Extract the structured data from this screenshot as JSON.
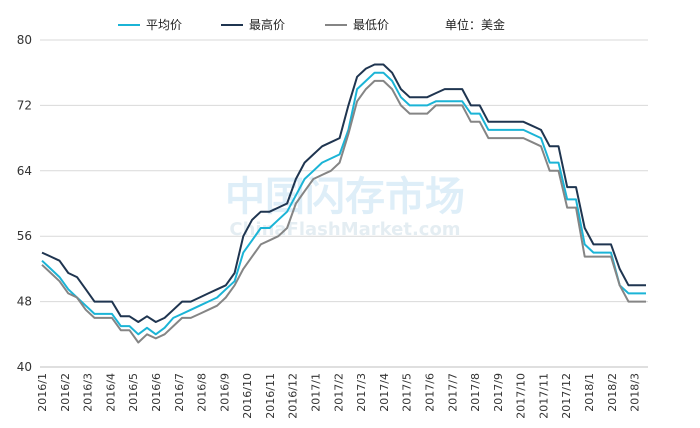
{
  "unit_label": "单位：美金",
  "watermark": {
    "cn": "中国闪存市场",
    "en": "ChinaFlashMarket.com"
  },
  "chart_data": {
    "type": "line",
    "ylim": [
      40,
      80
    ],
    "yticks": [
      40,
      48,
      56,
      64,
      72,
      80
    ],
    "grid": "horizontal",
    "legend_position": "top",
    "x_labels": [
      "2016/1",
      "2016/2",
      "2016/3",
      "2016/4",
      "2016/5",
      "2016/6",
      "2016/7",
      "2016/8",
      "2016/9",
      "2016/10",
      "2016/11",
      "2016/12",
      "2017/1",
      "2017/2",
      "2017/3",
      "2017/4",
      "2017/5",
      "2017/6",
      "2017/7",
      "2017/8",
      "2017/9",
      "2017/10",
      "2017/11",
      "2017/12",
      "2018/1",
      "2018/2",
      "2018/3"
    ],
    "series": [
      {
        "name": "平均价",
        "color": "#1bb4d6",
        "values": [
          53,
          52,
          51,
          49.5,
          48.5,
          47.5,
          46.5,
          46.5,
          46.5,
          45,
          45,
          44,
          44.8,
          44,
          44.8,
          46,
          46.5,
          47,
          47.5,
          48,
          48.5,
          49.5,
          50.5,
          54,
          55.5,
          57,
          57,
          58,
          59,
          61,
          63,
          64,
          65,
          65.5,
          66,
          69,
          74,
          75,
          76,
          76,
          75,
          73,
          72,
          72,
          72,
          72.5,
          72.5,
          72.5,
          72.5,
          71,
          71,
          69,
          69,
          69,
          69,
          69,
          68.5,
          68,
          65,
          65,
          60.5,
          60.5,
          55,
          54,
          54,
          54,
          50,
          49,
          49,
          49
        ]
      },
      {
        "name": "最高价",
        "color": "#1f3550",
        "values": [
          54,
          53.5,
          53,
          51.5,
          51,
          49.5,
          48,
          48,
          48,
          46.2,
          46.2,
          45.5,
          46.2,
          45.5,
          46,
          47,
          48,
          48,
          48.5,
          49,
          49.5,
          50,
          51.5,
          56,
          58,
          59,
          59,
          59.5,
          60,
          63,
          65,
          66,
          67,
          67.5,
          68,
          72,
          75.5,
          76.5,
          77,
          77,
          76,
          74,
          73,
          73,
          73,
          73.5,
          74,
          74,
          74,
          72,
          72,
          70,
          70,
          70,
          70,
          70,
          69.5,
          69,
          67,
          67,
          62,
          62,
          57,
          55,
          55,
          55,
          52,
          50,
          50,
          50
        ]
      },
      {
        "name": "最低价",
        "color": "#858585",
        "values": [
          52.5,
          51.5,
          50.5,
          49,
          48.5,
          47,
          46,
          46,
          46,
          44.5,
          44.5,
          43,
          44,
          43.5,
          44,
          45,
          46,
          46,
          46.5,
          47,
          47.5,
          48.5,
          50,
          52,
          53.5,
          55,
          55.5,
          56,
          57,
          60,
          61.5,
          63,
          63.5,
          64,
          65,
          68.5,
          72.5,
          74,
          75,
          75,
          74,
          72,
          71,
          71,
          71,
          72,
          72,
          72,
          72,
          70,
          70,
          68,
          68,
          68,
          68,
          68,
          67.5,
          67,
          64,
          64,
          59.5,
          59.5,
          53.5,
          53.5,
          53.5,
          53.5,
          50,
          48,
          48,
          48
        ]
      }
    ]
  }
}
